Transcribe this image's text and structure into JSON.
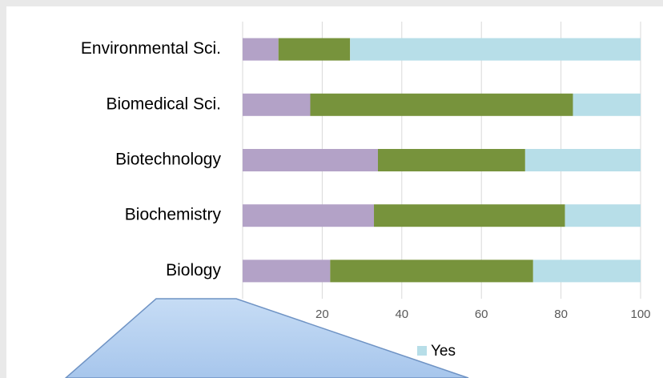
{
  "chart_data": {
    "type": "stacked-bar-horizontal",
    "categories": [
      "Environmental Sci.",
      "Biomedical Sci.",
      "Biotechnology",
      "Biochemistry",
      "Biology"
    ],
    "series": [
      {
        "color": "#b3a2c7",
        "values": [
          9,
          17,
          34,
          33,
          22
        ]
      },
      {
        "color": "#77933c",
        "values": [
          18,
          66,
          37,
          48,
          51
        ]
      },
      {
        "name": "Yes",
        "color": "#b7dee8",
        "values": [
          73,
          17,
          29,
          19,
          27
        ]
      }
    ],
    "xlim": [
      0,
      100
    ],
    "xticks": [
      0,
      20,
      40,
      60,
      80,
      100
    ],
    "grid": true
  }
}
